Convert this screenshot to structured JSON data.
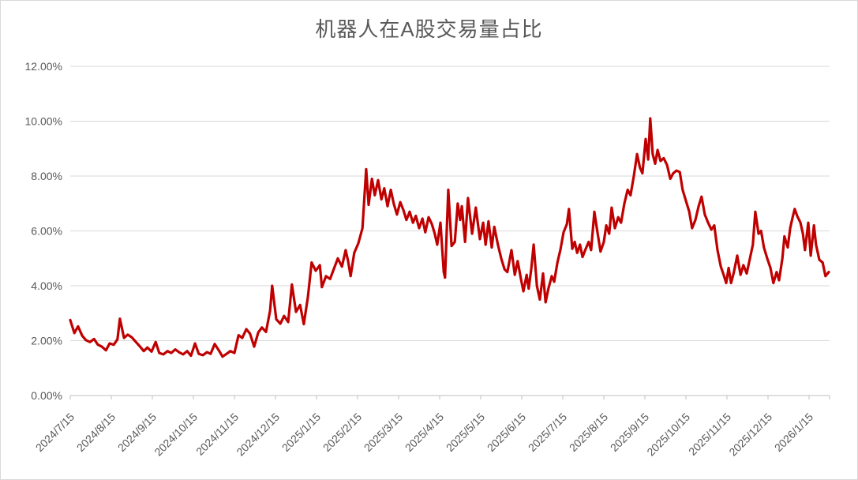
{
  "window": {
    "background": "#FFFFFF",
    "border_color": "#D9D9D9"
  },
  "chart_data": {
    "type": "line",
    "title": "机器人在A股交易量占比",
    "title_color": "#595959",
    "line_color": "#C00000",
    "grid_color": "#D9D9D9",
    "axis_color": "#BFBFBF",
    "tick_label_color": "#595959",
    "grid": true,
    "legend": "none",
    "ylabel": "",
    "xlabel": "",
    "ylim": [
      0,
      12
    ],
    "y_ticks": [
      {
        "value": 0,
        "label": "0.00%"
      },
      {
        "value": 2,
        "label": "2.00%"
      },
      {
        "value": 4,
        "label": "4.00%"
      },
      {
        "value": 6,
        "label": "6.00%"
      },
      {
        "value": 8,
        "label": "8.00%"
      },
      {
        "value": 10,
        "label": "10.00%"
      },
      {
        "value": 12,
        "label": "12.00%"
      }
    ],
    "x_axis": {
      "unit": "months_since_2024/7/15",
      "min": 0,
      "max": 18.5,
      "tick_labels": [
        {
          "m": 0,
          "label": "2024/7/15"
        },
        {
          "m": 1,
          "label": "2024/8/15"
        },
        {
          "m": 2,
          "label": "2024/9/15"
        },
        {
          "m": 3,
          "label": "2024/10/15"
        },
        {
          "m": 4,
          "label": "2024/11/15"
        },
        {
          "m": 5,
          "label": "2024/12/15"
        },
        {
          "m": 6,
          "label": "2025/1/15"
        },
        {
          "m": 7,
          "label": "2025/2/15"
        },
        {
          "m": 8,
          "label": "2025/3/15"
        },
        {
          "m": 9,
          "label": "2025/4/15"
        },
        {
          "m": 10,
          "label": "2025/5/15"
        },
        {
          "m": 11,
          "label": "2025/6/15"
        },
        {
          "m": 12,
          "label": "2025/7/15"
        },
        {
          "m": 13,
          "label": "2025/8/15"
        },
        {
          "m": 14,
          "label": "2025/9/15"
        },
        {
          "m": 15,
          "label": "2025/10/15"
        },
        {
          "m": 16,
          "label": "2025/11/15"
        },
        {
          "m": 17,
          "label": "2025/12/15"
        },
        {
          "m": 18,
          "label": "2026/1/15"
        }
      ]
    },
    "series": [
      {
        "points": [
          [
            0.0,
            2.75
          ],
          [
            0.1,
            2.28
          ],
          [
            0.19,
            2.52
          ],
          [
            0.29,
            2.18
          ],
          [
            0.38,
            2.02
          ],
          [
            0.48,
            1.95
          ],
          [
            0.58,
            2.06
          ],
          [
            0.67,
            1.86
          ],
          [
            0.77,
            1.78
          ],
          [
            0.87,
            1.65
          ],
          [
            0.96,
            1.9
          ],
          [
            1.06,
            1.85
          ],
          [
            1.15,
            2.05
          ],
          [
            1.21,
            2.8
          ],
          [
            1.31,
            2.1
          ],
          [
            1.4,
            2.22
          ],
          [
            1.5,
            2.12
          ],
          [
            1.6,
            1.95
          ],
          [
            1.69,
            1.8
          ],
          [
            1.79,
            1.62
          ],
          [
            1.88,
            1.75
          ],
          [
            1.98,
            1.6
          ],
          [
            2.08,
            1.95
          ],
          [
            2.17,
            1.55
          ],
          [
            2.27,
            1.5
          ],
          [
            2.37,
            1.62
          ],
          [
            2.46,
            1.55
          ],
          [
            2.56,
            1.68
          ],
          [
            2.65,
            1.58
          ],
          [
            2.75,
            1.5
          ],
          [
            2.85,
            1.62
          ],
          [
            2.94,
            1.45
          ],
          [
            3.04,
            1.9
          ],
          [
            3.13,
            1.52
          ],
          [
            3.23,
            1.47
          ],
          [
            3.33,
            1.58
          ],
          [
            3.42,
            1.52
          ],
          [
            3.52,
            1.88
          ],
          [
            3.62,
            1.65
          ],
          [
            3.71,
            1.42
          ],
          [
            3.81,
            1.52
          ],
          [
            3.9,
            1.62
          ],
          [
            4.0,
            1.55
          ],
          [
            4.1,
            2.2
          ],
          [
            4.19,
            2.1
          ],
          [
            4.29,
            2.42
          ],
          [
            4.38,
            2.25
          ],
          [
            4.48,
            1.78
          ],
          [
            4.58,
            2.3
          ],
          [
            4.67,
            2.48
          ],
          [
            4.77,
            2.32
          ],
          [
            4.87,
            3.1
          ],
          [
            4.92,
            4.0
          ],
          [
            5.02,
            2.78
          ],
          [
            5.12,
            2.62
          ],
          [
            5.21,
            2.9
          ],
          [
            5.31,
            2.68
          ],
          [
            5.4,
            4.05
          ],
          [
            5.5,
            3.05
          ],
          [
            5.6,
            3.3
          ],
          [
            5.69,
            2.6
          ],
          [
            5.79,
            3.6
          ],
          [
            5.88,
            4.85
          ],
          [
            5.98,
            4.55
          ],
          [
            6.08,
            4.75
          ],
          [
            6.13,
            3.95
          ],
          [
            6.23,
            4.35
          ],
          [
            6.33,
            4.25
          ],
          [
            6.42,
            4.6
          ],
          [
            6.52,
            5.0
          ],
          [
            6.62,
            4.7
          ],
          [
            6.71,
            5.3
          ],
          [
            6.77,
            4.9
          ],
          [
            6.83,
            4.35
          ],
          [
            6.92,
            5.2
          ],
          [
            7.02,
            5.55
          ],
          [
            7.12,
            6.1
          ],
          [
            7.21,
            8.25
          ],
          [
            7.27,
            6.95
          ],
          [
            7.35,
            7.9
          ],
          [
            7.42,
            7.3
          ],
          [
            7.5,
            7.85
          ],
          [
            7.58,
            7.15
          ],
          [
            7.65,
            7.55
          ],
          [
            7.73,
            6.9
          ],
          [
            7.81,
            7.5
          ],
          [
            7.88,
            7.0
          ],
          [
            7.96,
            6.6
          ],
          [
            8.04,
            7.05
          ],
          [
            8.12,
            6.75
          ],
          [
            8.19,
            6.4
          ],
          [
            8.27,
            6.7
          ],
          [
            8.35,
            6.3
          ],
          [
            8.42,
            6.55
          ],
          [
            8.5,
            6.1
          ],
          [
            8.58,
            6.45
          ],
          [
            8.65,
            5.95
          ],
          [
            8.73,
            6.5
          ],
          [
            8.81,
            6.25
          ],
          [
            8.88,
            5.9
          ],
          [
            8.94,
            5.5
          ],
          [
            9.02,
            6.3
          ],
          [
            9.1,
            4.5
          ],
          [
            9.13,
            4.3
          ],
          [
            9.21,
            7.5
          ],
          [
            9.29,
            5.45
          ],
          [
            9.37,
            5.6
          ],
          [
            9.44,
            7.0
          ],
          [
            9.5,
            6.4
          ],
          [
            9.54,
            6.9
          ],
          [
            9.62,
            5.6
          ],
          [
            9.69,
            7.2
          ],
          [
            9.79,
            5.9
          ],
          [
            9.88,
            6.85
          ],
          [
            9.98,
            5.7
          ],
          [
            10.06,
            6.3
          ],
          [
            10.12,
            5.5
          ],
          [
            10.19,
            6.35
          ],
          [
            10.27,
            5.4
          ],
          [
            10.33,
            6.15
          ],
          [
            10.42,
            5.5
          ],
          [
            10.5,
            5.0
          ],
          [
            10.58,
            4.6
          ],
          [
            10.65,
            4.5
          ],
          [
            10.75,
            5.3
          ],
          [
            10.83,
            4.4
          ],
          [
            10.9,
            4.9
          ],
          [
            10.98,
            4.25
          ],
          [
            11.04,
            3.8
          ],
          [
            11.12,
            4.4
          ],
          [
            11.17,
            3.9
          ],
          [
            11.23,
            4.6
          ],
          [
            11.29,
            5.5
          ],
          [
            11.37,
            4.0
          ],
          [
            11.44,
            3.5
          ],
          [
            11.52,
            4.45
          ],
          [
            11.58,
            3.4
          ],
          [
            11.65,
            3.9
          ],
          [
            11.73,
            4.35
          ],
          [
            11.79,
            4.15
          ],
          [
            11.87,
            4.85
          ],
          [
            11.94,
            5.3
          ],
          [
            12.02,
            5.95
          ],
          [
            12.1,
            6.25
          ],
          [
            12.15,
            6.8
          ],
          [
            12.23,
            5.35
          ],
          [
            12.29,
            5.6
          ],
          [
            12.35,
            5.2
          ],
          [
            12.42,
            5.5
          ],
          [
            12.48,
            5.05
          ],
          [
            12.56,
            5.35
          ],
          [
            12.63,
            5.6
          ],
          [
            12.69,
            5.3
          ],
          [
            12.77,
            6.7
          ],
          [
            12.85,
            5.9
          ],
          [
            12.92,
            5.25
          ],
          [
            13.0,
            5.6
          ],
          [
            13.06,
            6.2
          ],
          [
            13.13,
            5.9
          ],
          [
            13.19,
            6.85
          ],
          [
            13.27,
            6.1
          ],
          [
            13.35,
            6.5
          ],
          [
            13.42,
            6.3
          ],
          [
            13.5,
            7.0
          ],
          [
            13.58,
            7.5
          ],
          [
            13.65,
            7.3
          ],
          [
            13.73,
            8.0
          ],
          [
            13.81,
            8.8
          ],
          [
            13.88,
            8.3
          ],
          [
            13.94,
            8.1
          ],
          [
            14.02,
            9.35
          ],
          [
            14.08,
            8.6
          ],
          [
            14.13,
            10.1
          ],
          [
            14.19,
            8.8
          ],
          [
            14.25,
            8.45
          ],
          [
            14.31,
            8.95
          ],
          [
            14.38,
            8.55
          ],
          [
            14.46,
            8.65
          ],
          [
            14.54,
            8.4
          ],
          [
            14.62,
            7.9
          ],
          [
            14.69,
            8.1
          ],
          [
            14.77,
            8.2
          ],
          [
            14.85,
            8.15
          ],
          [
            14.92,
            7.5
          ],
          [
            15.0,
            7.1
          ],
          [
            15.08,
            6.7
          ],
          [
            15.15,
            6.1
          ],
          [
            15.23,
            6.4
          ],
          [
            15.31,
            6.9
          ],
          [
            15.38,
            7.25
          ],
          [
            15.46,
            6.6
          ],
          [
            15.54,
            6.3
          ],
          [
            15.62,
            6.05
          ],
          [
            15.69,
            6.2
          ],
          [
            15.77,
            5.3
          ],
          [
            15.85,
            4.7
          ],
          [
            15.92,
            4.4
          ],
          [
            15.98,
            4.1
          ],
          [
            16.04,
            4.65
          ],
          [
            16.1,
            4.1
          ],
          [
            16.17,
            4.5
          ],
          [
            16.25,
            5.1
          ],
          [
            16.33,
            4.4
          ],
          [
            16.4,
            4.75
          ],
          [
            16.48,
            4.45
          ],
          [
            16.56,
            5.0
          ],
          [
            16.63,
            5.5
          ],
          [
            16.69,
            6.7
          ],
          [
            16.77,
            5.9
          ],
          [
            16.83,
            6.0
          ],
          [
            16.9,
            5.4
          ],
          [
            16.98,
            5.0
          ],
          [
            17.06,
            4.65
          ],
          [
            17.13,
            4.1
          ],
          [
            17.21,
            4.5
          ],
          [
            17.27,
            4.2
          ],
          [
            17.35,
            5.0
          ],
          [
            17.4,
            5.8
          ],
          [
            17.48,
            5.4
          ],
          [
            17.54,
            6.1
          ],
          [
            17.6,
            6.5
          ],
          [
            17.65,
            6.8
          ],
          [
            17.71,
            6.55
          ],
          [
            17.79,
            6.3
          ],
          [
            17.85,
            5.9
          ],
          [
            17.9,
            5.3
          ],
          [
            17.98,
            6.3
          ],
          [
            18.04,
            5.1
          ],
          [
            18.12,
            6.2
          ],
          [
            18.17,
            5.5
          ],
          [
            18.25,
            4.95
          ],
          [
            18.33,
            4.85
          ],
          [
            18.4,
            4.35
          ],
          [
            18.48,
            4.5
          ]
        ]
      }
    ]
  }
}
